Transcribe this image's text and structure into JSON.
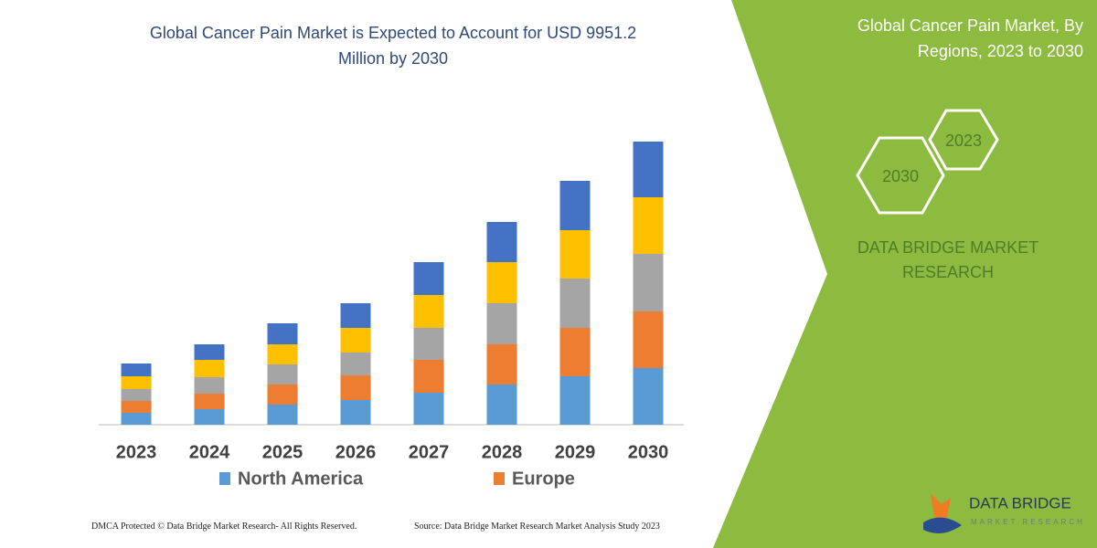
{
  "chart_data": {
    "type": "bar",
    "stacked": true,
    "title": "Global Cancer Pain Market is Expected to Account for USD 9951.2 Million by 2030",
    "categories": [
      "2023",
      "2024",
      "2025",
      "2026",
      "2027",
      "2028",
      "2029",
      "2030"
    ],
    "series": [
      {
        "name": "North America",
        "color": "#5b9bd5",
        "values": [
          13,
          17,
          22,
          27,
          35,
          44,
          53,
          62
        ]
      },
      {
        "name": "Europe",
        "color": "#ed7d31",
        "values": [
          13,
          17,
          22,
          27,
          36,
          44,
          53,
          62
        ]
      },
      {
        "color": "#a5a5a5",
        "values": [
          13,
          18,
          22,
          25,
          35,
          45,
          54,
          63
        ]
      },
      {
        "color": "#ffc000",
        "values": [
          14,
          19,
          22,
          27,
          36,
          45,
          53,
          62
        ]
      },
      {
        "color": "#4472c4",
        "values": [
          14,
          17,
          23,
          27,
          36,
          44,
          54,
          61
        ]
      }
    ],
    "ylim": [
      0,
      310
    ]
  },
  "side_panel": {
    "title": "Global Cancer Pain Market, By Regions, 2023 to 2030",
    "hexagons": [
      "2023",
      "2030"
    ],
    "brand": "DATA BRIDGE MARKET RESEARCH"
  },
  "footer": {
    "copyright": "DMCA Protected © Data Bridge Market Research- All Rights Reserved.",
    "source": "Source: Data Bridge Market Research Market Analysis Study 2023"
  },
  "logo": {
    "name": "DATA BRIDGE",
    "tagline": "MARKET RESEARCH"
  }
}
